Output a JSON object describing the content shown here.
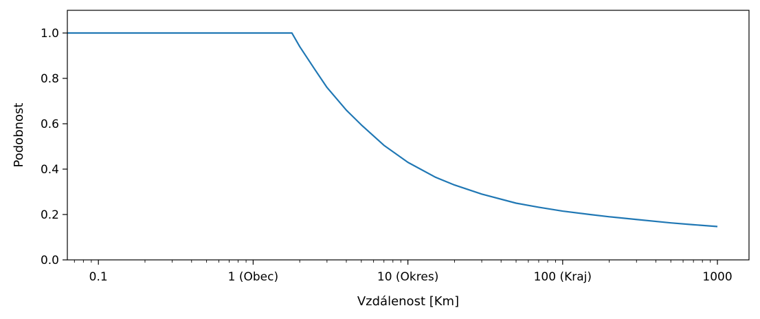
{
  "chart_data": {
    "type": "line",
    "title": "",
    "xlabel": "Vzdálenost [Km]",
    "ylabel": "Podobnost",
    "x_scale": "log",
    "xlim": [
      0.063,
      1600
    ],
    "ylim": [
      0.0,
      1.1
    ],
    "grid": false,
    "x_ticks": [
      {
        "value": 0.1,
        "label": "0.1"
      },
      {
        "value": 1,
        "label": "1 (Obec)"
      },
      {
        "value": 10,
        "label": "10 (Okres)"
      },
      {
        "value": 100,
        "label": "100 (Kraj)"
      },
      {
        "value": 1000,
        "label": "1000"
      }
    ],
    "y_ticks": [
      {
        "value": 0.0,
        "label": "0.0"
      },
      {
        "value": 0.2,
        "label": "0.2"
      },
      {
        "value": 0.4,
        "label": "0.4"
      },
      {
        "value": 0.6,
        "label": "0.6"
      },
      {
        "value": 0.8,
        "label": "0.8"
      },
      {
        "value": 1.0,
        "label": "1.0"
      }
    ],
    "series": [
      {
        "color": "#1f77b4",
        "x": [
          0.063,
          0.1,
          0.5,
          1.0,
          1.5,
          1.78,
          2.0,
          2.5,
          3.0,
          4.0,
          5.0,
          7.0,
          10,
          15,
          20,
          30,
          50,
          70,
          100,
          150,
          200,
          300,
          500,
          700,
          1000
        ],
        "y": [
          1.0,
          1.0,
          1.0,
          1.0,
          1.0,
          1.0,
          0.94,
          0.84,
          0.76,
          0.66,
          0.595,
          0.505,
          0.43,
          0.365,
          0.33,
          0.29,
          0.25,
          0.232,
          0.215,
          0.2,
          0.19,
          0.178,
          0.163,
          0.155,
          0.147
        ]
      }
    ]
  }
}
